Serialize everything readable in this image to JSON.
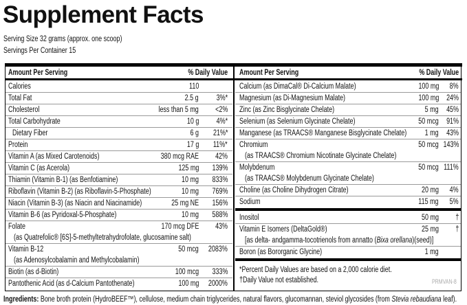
{
  "title": "Supplement Facts",
  "serving_size": "Serving Size 32 grams (approx. one scoop)",
  "servings_per_container": "Servings Per Container 15",
  "left_panel": {
    "header": {
      "amount": "Amount Per Serving",
      "daily_value": "% Daily Value"
    },
    "rows": [
      {
        "name": "Calories",
        "amount": "110"
      },
      {
        "name": "Total Fat",
        "amount": "2.5 g",
        "dv": "3%*"
      },
      {
        "name": "Cholesterol",
        "amount": "less than 5 mg",
        "dv": "<2%"
      },
      {
        "name": "Total Carbohydrate",
        "amount": "10 g",
        "dv": "4%*"
      },
      {
        "name": "Dietary Fiber",
        "amount": "6 g",
        "dv": "21%*"
      },
      {
        "name": "Protein",
        "amount": "17 g",
        "dv": "11%*"
      },
      {
        "name": "Vitamin A (as Mixed Carotenoids)",
        "amount": "380 mcg RAE",
        "dv": "42%"
      },
      {
        "name": "Vitamin C (as Acerola)",
        "amount": "125 mg",
        "dv": "139%"
      },
      {
        "name": "Thiamin (Vitamin B-1) (as Benfotiamine)",
        "amount": "10 mg",
        "dv": "833%"
      },
      {
        "name": "Riboflavin (Vitamin B-2) (as Riboflavin-5-Phosphate)",
        "amount": "10 mg",
        "dv": "769%"
      },
      {
        "name": "Niacin (Vitamin B-3) (as Niacin and Niacinamide)",
        "amount": "25 mg NE",
        "dv": "156%"
      },
      {
        "name": "Vitamin B-6 (as Pyridoxal-5-Phosphate)",
        "amount": "10 mg",
        "dv": "588%"
      },
      {
        "name": "Folate",
        "amount": "170 mcg DFE",
        "dv": "43%",
        "sub": [
          "(as Quatrefolic® [6S]-5-methyltetrahydrofolate, glucosamine salt)"
        ]
      },
      {
        "name": "Vitamin B-12",
        "amount": "50 mcg",
        "dv": "2083%",
        "sub": [
          "(as Adenosylcobalamin and Methylcobalamin)"
        ]
      },
      {
        "name": "Biotin (as d-Biotin)",
        "amount": "100 mcg",
        "dv": "333%"
      },
      {
        "name": "Pantothenic Acid (as d-Calcium Pantothenate)",
        "amount": "100 mg",
        "dv": "2000%"
      }
    ]
  },
  "right_panel": {
    "header": {
      "amount": "Amount Per Serving",
      "daily_value": "% Daily Value"
    },
    "groups": [
      {
        "rows": [
          {
            "name": "Calcium (as DimaCal® Di-Calcium Malate)",
            "amount": "100 mg",
            "dv": "8%"
          },
          {
            "name": "Magnesium (as Di-Magnesium Malate)",
            "amount": "100 mg",
            "dv": "24%"
          },
          {
            "name": "Zinc (as Zinc Bisglycinate Chelate)",
            "amount": "5 mg",
            "dv": "45%"
          },
          {
            "name": "Selenium (as Selenium Glycinate Chelate)",
            "amount": "50 mcg",
            "dv": "91%"
          },
          {
            "name": "Manganese (as TRAACS® Manganese Bisglycinate Chelate)",
            "amount": "1 mg",
            "dv": "43%"
          },
          {
            "name": "Chromium",
            "amount": "50 mcg",
            "dv": "143%",
            "sub": [
              "(as TRAACS® Chromium Nicotinate Glycinate Chelate)"
            ]
          },
          {
            "name": "Molybdenum",
            "amount": "50 mcg",
            "dv": "111%",
            "sub": [
              "(as TRAACS® Molybdenum Glycinate Chelate)"
            ]
          },
          {
            "name": "Choline (as Choline Dihydrogen Citrate)",
            "amount": "20 mg",
            "dv": "4%"
          },
          {
            "name": "Sodium",
            "amount": "115 mg",
            "dv": "5%"
          }
        ]
      },
      {
        "rows": [
          {
            "name": "Inositol",
            "amount": "50 mg",
            "dv": "†"
          },
          {
            "name": "Vitamin E Isomers (DeltaGold®)",
            "amount": "25 mg",
            "dv": "†",
            "sub": [
              "[as delta- andgamma-tocotrienols from annatto (",
              "Bixa orellana",
              ")(seed)]"
            ]
          },
          {
            "name": "Boron (as Bororganic Glycine)",
            "amount": "1 mg"
          }
        ]
      }
    ],
    "footnotes": [
      "*Percent Daily Values are based on a 2,000 calorie diet.",
      "†Daily Value not established."
    ]
  },
  "code": "PRMVAN-8",
  "ingredients": {
    "label": "Ingredients:",
    "parts": [
      " Bone broth protein (HydroBEEF™), cellulose, medium chain triglycerides, natural flavors, glucomannan, steviol glycosides (from ",
      "Stevia rebaudiana",
      " leaf)."
    ]
  }
}
